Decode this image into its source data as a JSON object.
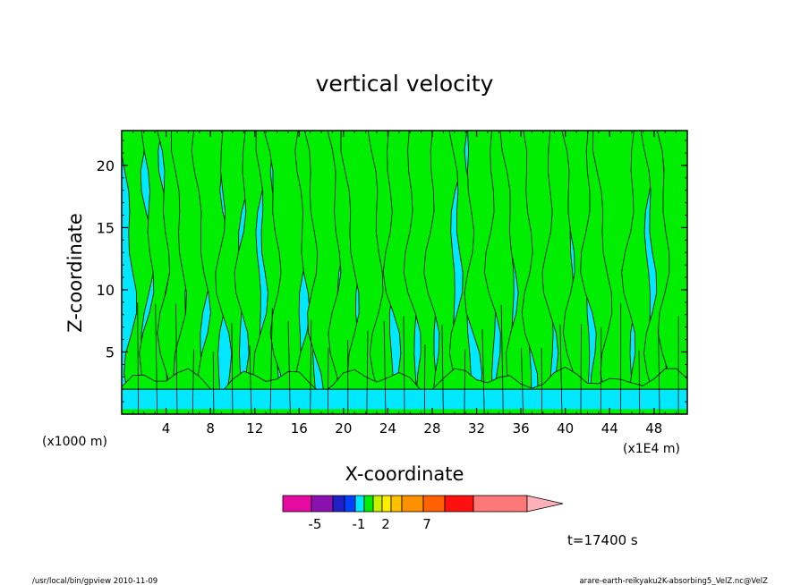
{
  "chart_data": {
    "type": "heatmap",
    "title": "vertical velocity",
    "xlabel": "X-coordinate",
    "ylabel": "Z-coordinate",
    "x_unit_left": "(x1000 m)",
    "x_unit_right": "(x1E4 m)",
    "xlim": [
      0,
      51
    ],
    "ylim": [
      0,
      22.8
    ],
    "x_ticks": [
      "4",
      "8",
      "12",
      "16",
      "20",
      "24",
      "28",
      "32",
      "36",
      "40",
      "44",
      "48"
    ],
    "x_tick_values": [
      4,
      8,
      12,
      16,
      20,
      24,
      28,
      32,
      36,
      40,
      44,
      48
    ],
    "y_ticks": [
      "5",
      "10",
      "15",
      "20"
    ],
    "y_tick_values": [
      5,
      10,
      15,
      20
    ],
    "colors": {
      "negative_field": "#00e8ff",
      "positive_field": "#00ee00",
      "contour": "#000000"
    },
    "low_level_band": {
      "z_bottom": 0,
      "z_top": 2.0,
      "color": "#00e8ff"
    },
    "positive_updraft_x": [
      1.5,
      3.2,
      5.0,
      6.4,
      8.3,
      10.0,
      11.7,
      13.4,
      15.2,
      17.0,
      18.6,
      20.4,
      22.1,
      23.8,
      25.5,
      27.3,
      29.0,
      30.9,
      32.7,
      34.4,
      36.2,
      37.9,
      39.7,
      41.4,
      43.2,
      45.0,
      46.7,
      48.5,
      50.2
    ],
    "colorbar": {
      "colors": [
        "#e60aa0",
        "#8a10b0",
        "#2020c8",
        "#0040ff",
        "#00e8ff",
        "#00ee00",
        "#c8f000",
        "#ffee00",
        "#ffc000",
        "#ff9000",
        "#ff6000",
        "#ff1010",
        "#ff7878",
        "#ffb0b8"
      ],
      "tick_labels": [
        "-5",
        "-1",
        "2",
        "7"
      ],
      "tick_values": [
        -5,
        -1,
        2,
        7
      ]
    },
    "time_label": "t=17400 s"
  },
  "footer": {
    "left": "/usr/local/bin/gpview  2010-11-09",
    "right": "arare-earth-reikyaku2K-absorbing5_VelZ.nc@VelZ"
  }
}
